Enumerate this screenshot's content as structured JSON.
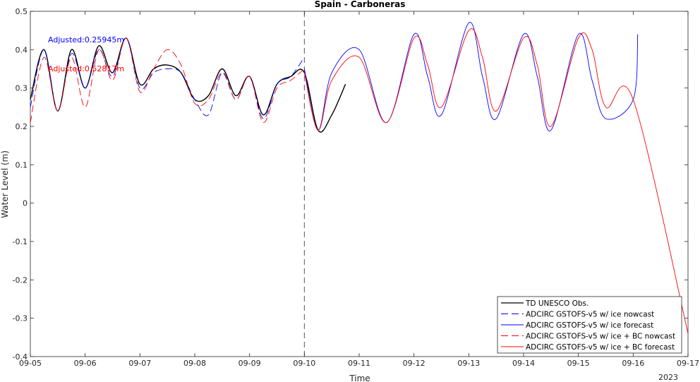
{
  "chart_data": {
    "type": "line",
    "title": "Spain - Carboneras",
    "xlabel": "Time",
    "ylabel": "Water Level (m)",
    "year_label": "2023",
    "x_ticks": [
      "09-05",
      "09-06",
      "09-07",
      "09-08",
      "09-09",
      "09-10",
      "09-11",
      "09-12",
      "09-13",
      "09-14",
      "09-15",
      "09-16",
      "09-17"
    ],
    "y_ticks": [
      "0.5",
      "0.4",
      "0.3",
      "0.2",
      "0.1",
      "0",
      "-0.1",
      "-0.2",
      "-0.3",
      "-0.4"
    ],
    "xlim": [
      "2023-09-05",
      "2023-09-17"
    ],
    "ylim": [
      -0.4,
      0.5
    ],
    "grid": false,
    "legend_position": "bottom-right",
    "nowcast_forecast_divider": "2023-09-10",
    "annotations": [
      {
        "text": "Adjusted:0.25945m",
        "color": "#0000ff"
      },
      {
        "text": "Adjusted:0.52817m",
        "color": "#ff0000"
      }
    ],
    "series": [
      {
        "name": "TD UNESCO Obs.",
        "color": "#000000",
        "dash": "solid",
        "x": [
          "09-05 00:00",
          "09-05 06:00",
          "09-05 12:00",
          "09-05 18:00",
          "09-06 00:00",
          "09-06 06:00",
          "09-06 12:00",
          "09-06 18:00",
          "09-07 00:00",
          "09-07 06:00",
          "09-07 12:00",
          "09-07 18:00",
          "09-08 00:00",
          "09-08 06:00",
          "09-08 12:00",
          "09-08 18:00",
          "09-09 00:00",
          "09-09 06:00",
          "09-09 12:00",
          "09-09 18:00",
          "09-10 00:00",
          "09-10 06:00",
          "09-10 12:00",
          "09-10 18:00"
        ],
        "y": [
          0.27,
          0.4,
          0.24,
          0.4,
          0.3,
          0.41,
          0.34,
          0.43,
          0.31,
          0.35,
          0.36,
          0.34,
          0.27,
          0.28,
          0.35,
          0.28,
          0.33,
          0.23,
          0.31,
          0.33,
          0.34,
          0.19,
          0.23,
          0.31
        ]
      },
      {
        "name": "ADCIRC GSTOFS-v5 w/ ice nowcast",
        "color": "#0000ff",
        "dash": "dashed",
        "x": [
          "09-05 00:00",
          "09-05 06:00",
          "09-05 12:00",
          "09-05 18:00",
          "09-06 00:00",
          "09-06 06:00",
          "09-06 12:00",
          "09-06 18:00",
          "09-07 00:00",
          "09-07 06:00",
          "09-07 12:00",
          "09-07 18:00",
          "09-08 00:00",
          "09-08 06:00",
          "09-08 12:00",
          "09-08 18:00",
          "09-09 00:00",
          "09-09 06:00",
          "09-09 12:00",
          "09-09 18:00",
          "09-10 00:00"
        ],
        "y": [
          0.25,
          0.4,
          0.24,
          0.39,
          0.3,
          0.4,
          0.33,
          0.43,
          0.3,
          0.34,
          0.35,
          0.34,
          0.27,
          0.23,
          0.34,
          0.27,
          0.33,
          0.22,
          0.31,
          0.33,
          0.38
        ]
      },
      {
        "name": "ADCIRC GSTOFS-v5 w/ ice forecast",
        "color": "#0000ff",
        "dash": "solid",
        "x": [
          "09-10 00:00",
          "09-10 06:00",
          "09-10 12:00",
          "09-11 00:00",
          "09-11 12:00",
          "09-12 00:00",
          "09-12 06:00",
          "09-12 12:00",
          "09-13 00:00",
          "09-13 06:00",
          "09-13 12:00",
          "09-14 00:00",
          "09-14 06:00",
          "09-14 12:00",
          "09-15 00:00",
          "09-15 06:00",
          "09-15 12:00",
          "09-16 00:00",
          "09-16 02:00"
        ],
        "y": [
          0.35,
          0.19,
          0.34,
          0.4,
          0.21,
          0.44,
          0.33,
          0.23,
          0.47,
          0.33,
          0.22,
          0.44,
          0.33,
          0.19,
          0.44,
          0.32,
          0.22,
          0.27,
          0.44
        ]
      },
      {
        "name": "ADCIRC GSTOFS-v5 w/ ice + BC nowcast",
        "color": "#ff0000",
        "dash": "dashed",
        "x": [
          "09-05 00:00",
          "09-05 06:00",
          "09-05 12:00",
          "09-05 18:00",
          "09-06 00:00",
          "09-06 06:00",
          "09-06 12:00",
          "09-06 18:00",
          "09-07 00:00",
          "09-07 06:00",
          "09-07 12:00",
          "09-07 18:00",
          "09-08 00:00",
          "09-08 06:00",
          "09-08 12:00",
          "09-08 18:00",
          "09-09 00:00",
          "09-09 06:00",
          "09-09 12:00",
          "09-09 18:00",
          "09-10 00:00"
        ],
        "y": [
          0.21,
          0.38,
          0.24,
          0.38,
          0.25,
          0.4,
          0.32,
          0.43,
          0.29,
          0.35,
          0.4,
          0.36,
          0.26,
          0.27,
          0.34,
          0.27,
          0.33,
          0.21,
          0.3,
          0.32,
          0.35
        ]
      },
      {
        "name": "ADCIRC GSTOFS-v5 w/ ice + BC forecast",
        "color": "#ff0000",
        "dash": "solid",
        "x": [
          "09-10 00:00",
          "09-10 06:00",
          "09-10 12:00",
          "09-11 00:00",
          "09-11 12:00",
          "09-12 00:00",
          "09-12 06:00",
          "09-12 12:00",
          "09-13 00:00",
          "09-13 06:00",
          "09-13 12:00",
          "09-14 00:00",
          "09-14 06:00",
          "09-14 12:00",
          "09-15 00:00",
          "09-15 06:00",
          "09-15 12:00",
          "09-16 00:00",
          "09-17 00:00"
        ],
        "y": [
          0.34,
          0.19,
          0.32,
          0.38,
          0.21,
          0.43,
          0.36,
          0.25,
          0.45,
          0.38,
          0.24,
          0.43,
          0.36,
          0.2,
          0.43,
          0.4,
          0.25,
          0.27,
          -0.34
        ]
      }
    ]
  }
}
